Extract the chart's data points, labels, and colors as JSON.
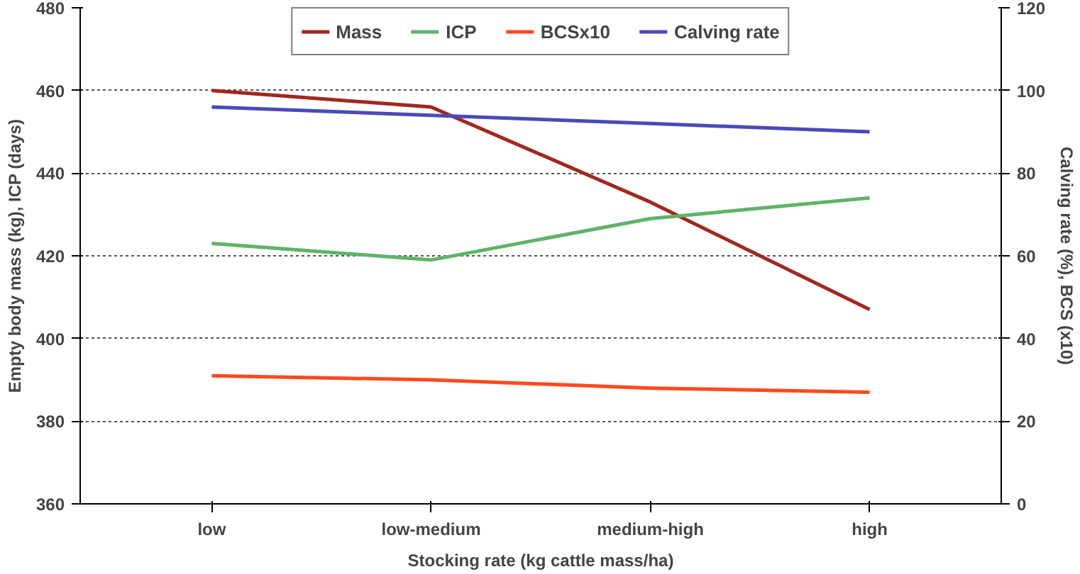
{
  "chart_data": {
    "type": "line",
    "xlabel": "Stocking rate (kg cattle mass/ha)",
    "ylabel": "Empty body mass (kg), ICP (days)",
    "y2label": "Calving rate (%), BCS (x10)",
    "categories": [
      "low",
      "low-medium",
      "medium-high",
      "high"
    ],
    "series": [
      {
        "name": "Mass",
        "color": "#a0281e",
        "values": [
          460,
          456,
          433,
          407
        ]
      },
      {
        "name": "ICP",
        "color": "#5fb36a",
        "values": [
          423,
          419,
          429,
          434
        ]
      },
      {
        "name": "BCSx10",
        "color": "#ff4a1e",
        "values": [
          31,
          30,
          28,
          27
        ],
        "axis": "y2"
      },
      {
        "name": "Calving rate",
        "color": "#4a4ab8",
        "values": [
          96,
          94,
          92,
          90
        ],
        "axis": "y2"
      }
    ],
    "ylim": [
      360,
      480
    ],
    "yticks": [
      360,
      380,
      400,
      420,
      440,
      460,
      480
    ],
    "y2lim": [
      0,
      120
    ],
    "y2ticks": [
      0,
      20,
      40,
      60,
      80,
      100,
      120
    ],
    "grid": "y",
    "legend": "top",
    "line_style": "solid"
  }
}
